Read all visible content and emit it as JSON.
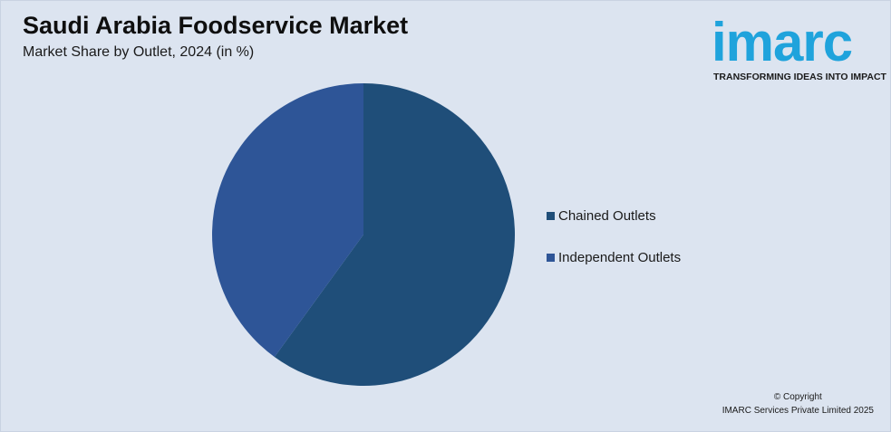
{
  "header": {
    "title": "Saudi Arabia Foodservice Market",
    "subtitle": "Market Share by Outlet, 2024 (in %)"
  },
  "logo": {
    "wordmark": "imarc",
    "tagline": "TRANSFORMING IDEAS INTO IMPACT",
    "color": "#1fa3dc"
  },
  "chart_data": {
    "type": "pie",
    "title": "Saudi Arabia Foodservice Market",
    "subtitle": "Market Share by Outlet, 2024 (in %)",
    "legend_position": "right",
    "slices": [
      {
        "label": "Chained Outlets",
        "value": 60,
        "color": "#1f4e79"
      },
      {
        "label": "Independent Outlets",
        "value": 40,
        "color": "#2e5597"
      }
    ]
  },
  "footer": {
    "copyright_line1": "© Copyright",
    "copyright_line2": "IMARC Services Private Limited 2025"
  }
}
